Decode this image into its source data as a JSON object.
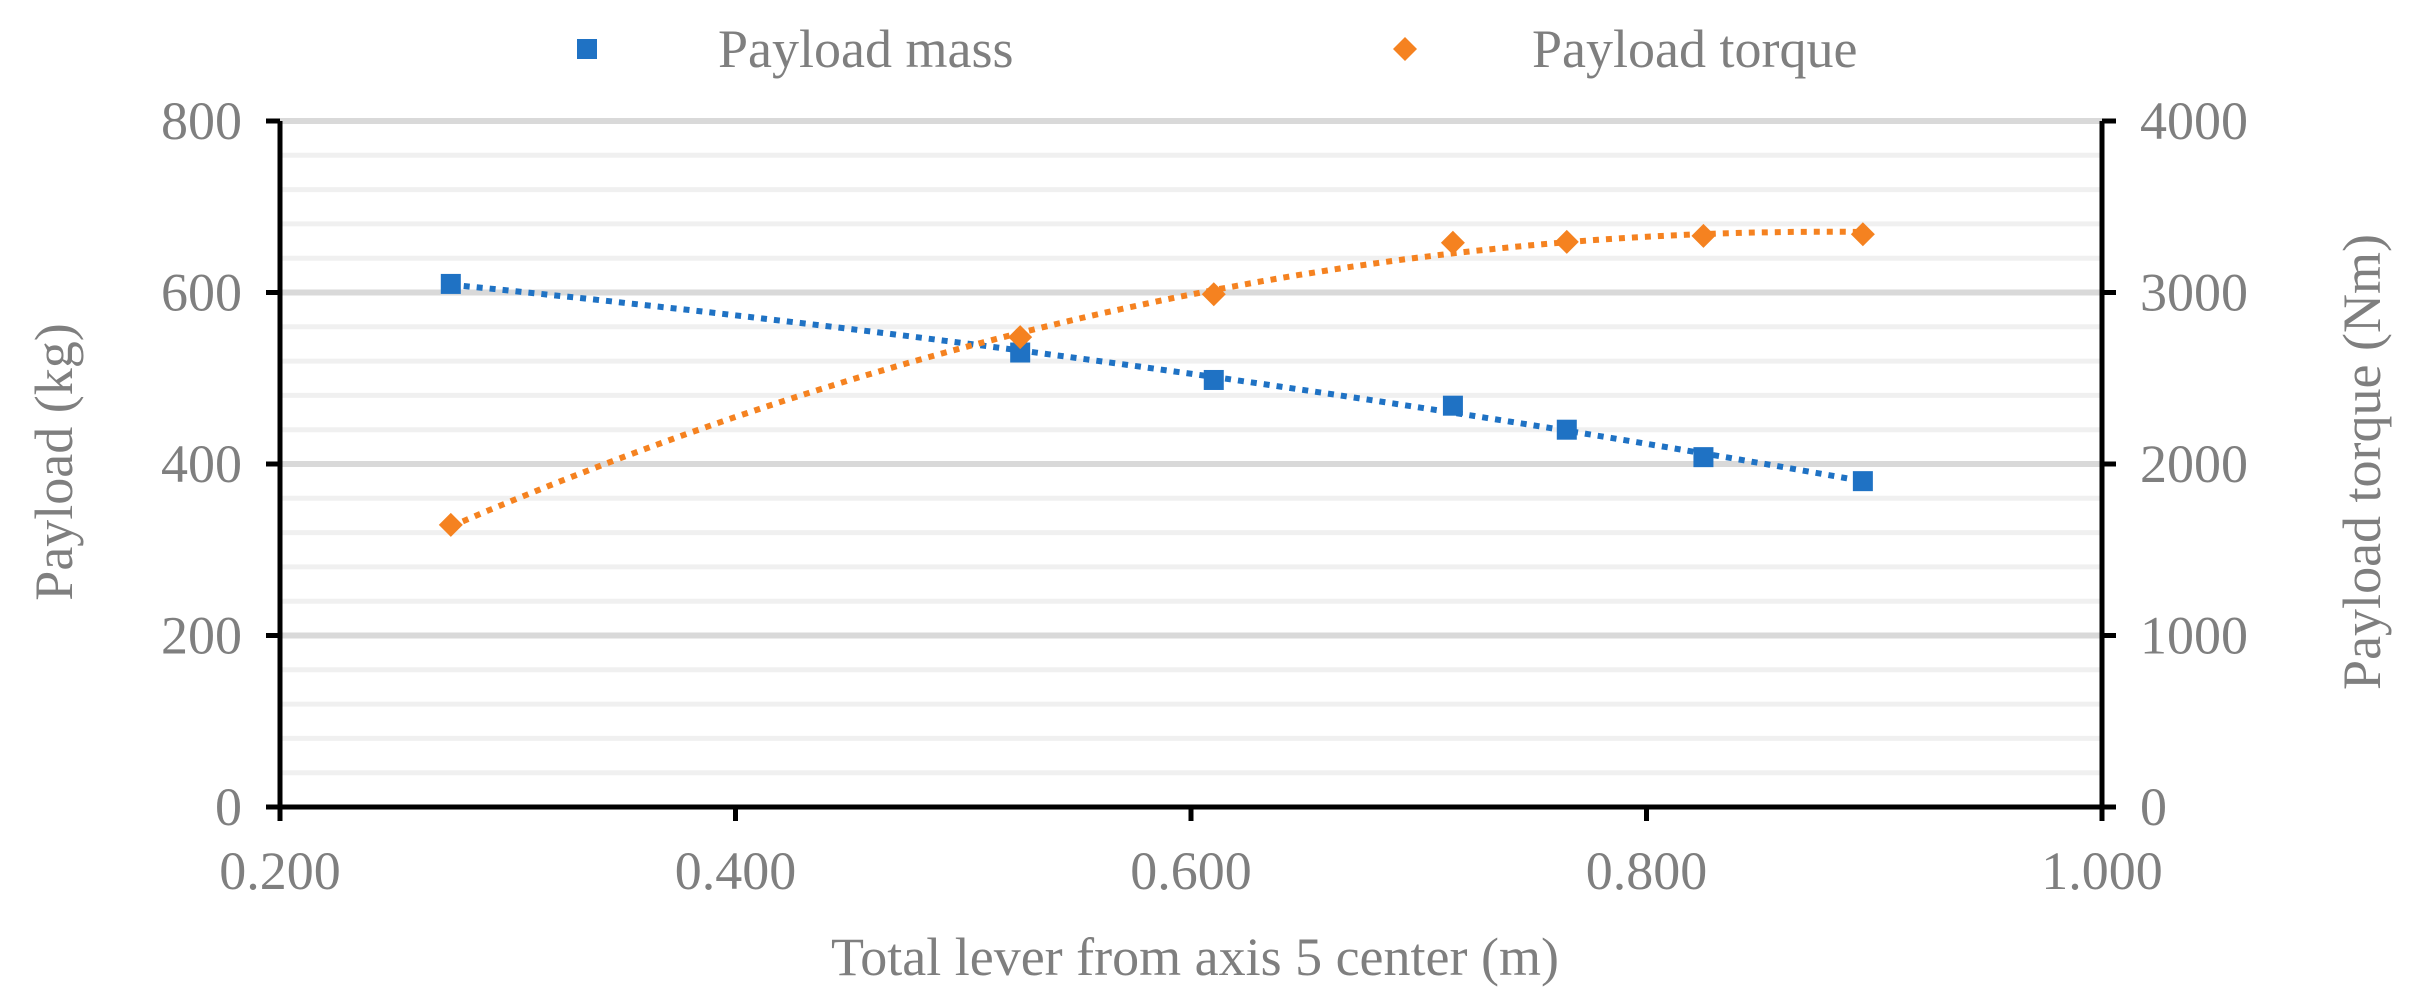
{
  "chart_data": {
    "type": "scatter",
    "title": "",
    "xlabel": "Total lever from axis 5 center (m)",
    "ylabel": "Payload (kg)",
    "y2label": "Payload torque (Nm)",
    "xlim": [
      0.2,
      1.0
    ],
    "ylim": [
      0,
      800
    ],
    "y2lim": [
      0,
      4000
    ],
    "x_ticks": [
      "0.200",
      "0.400",
      "0.600",
      "0.800",
      "1.000"
    ],
    "x_tick_values": [
      0.2,
      0.4,
      0.6,
      0.8,
      1.0
    ],
    "y_ticks": [
      "0",
      "200",
      "400",
      "600",
      "800"
    ],
    "y_tick_values": [
      0,
      200,
      400,
      600,
      800
    ],
    "y2_ticks": [
      "0",
      "1000",
      "2000",
      "3000",
      "4000"
    ],
    "y2_tick_values": [
      0,
      1000,
      2000,
      3000,
      4000
    ],
    "grid": true,
    "legend_position": "top-center",
    "series": [
      {
        "name": "Payload mass",
        "axis": "left",
        "marker": "square",
        "color": "#1f72c4",
        "trendline": "dotted",
        "x": [
          0.275,
          0.525,
          0.61,
          0.715,
          0.765,
          0.825,
          0.895
        ],
        "y": [
          610,
          530,
          498,
          468,
          440,
          408,
          380
        ]
      },
      {
        "name": "Payload torque",
        "axis": "right",
        "marker": "diamond",
        "color": "#f58220",
        "trendline": "dotted",
        "x": [
          0.275,
          0.525,
          0.61,
          0.715,
          0.765,
          0.825,
          0.895
        ],
        "y": [
          1645,
          2740,
          2990,
          3290,
          3295,
          3330,
          3340
        ]
      }
    ]
  }
}
